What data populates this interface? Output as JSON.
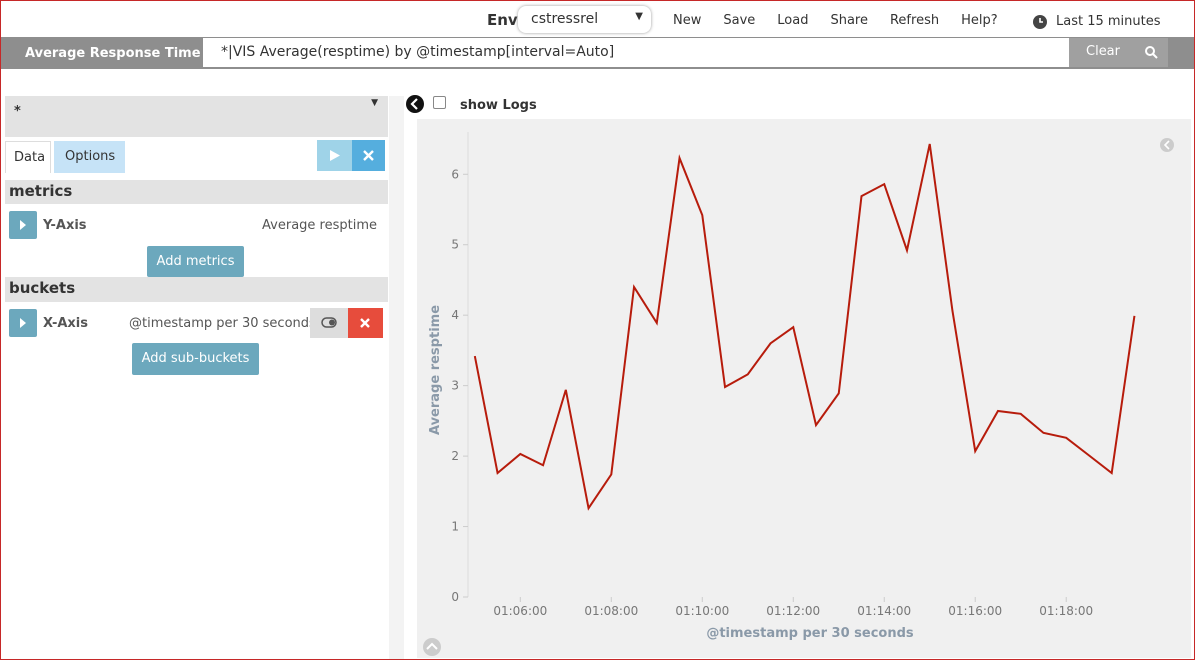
{
  "header": {
    "env_label": "Env",
    "env_value": "cstressrel",
    "menu": [
      "New",
      "Save",
      "Load",
      "Share",
      "Refresh",
      "Help?"
    ],
    "time_range": "Last 15 minutes",
    "title": "Average Response Time",
    "query": "*|VIS Average(resptime) by @timestamp[interval=Auto]",
    "clear": "Clear"
  },
  "sidebar": {
    "index": "*",
    "tabs": [
      "Data",
      "Options"
    ],
    "metrics_title": "metrics",
    "metrics": [
      {
        "name": "Y-Axis",
        "value": "Average resptime"
      }
    ],
    "add_metrics": "Add metrics",
    "buckets_title": "buckets",
    "buckets": [
      {
        "name": "X-Axis",
        "value": "@timestamp per 30 seconds"
      }
    ],
    "add_buckets": "Add sub-buckets"
  },
  "show_logs": "show Logs",
  "chart_data": {
    "type": "line",
    "x_label": "@timestamp per 30 seconds",
    "y_label": "Average resptime",
    "color": "#b71c0c",
    "x": [
      "01:05:00",
      "01:05:30",
      "01:06:00",
      "01:06:30",
      "01:07:00",
      "01:07:30",
      "01:08:00",
      "01:08:30",
      "01:09:00",
      "01:09:30",
      "01:10:00",
      "01:10:30",
      "01:11:00",
      "01:11:30",
      "01:12:00",
      "01:12:30",
      "01:13:00",
      "01:13:30",
      "01:14:00",
      "01:14:30",
      "01:15:00",
      "01:15:30",
      "01:16:00",
      "01:16:30",
      "01:17:00",
      "01:17:30",
      "01:18:00",
      "01:18:30",
      "01:19:00",
      "01:19:30"
    ],
    "values": [
      3.42,
      1.76,
      2.03,
      1.87,
      2.94,
      1.26,
      1.74,
      4.4,
      3.89,
      6.23,
      5.42,
      2.98,
      3.16,
      3.6,
      3.83,
      2.44,
      2.89,
      5.69,
      5.86,
      4.92,
      6.43,
      4.06,
      2.07,
      2.64,
      2.6,
      2.33,
      2.26,
      2.01,
      1.76,
      3.99
    ],
    "xlim": [
      "01:04:51",
      "01:20:38"
    ],
    "xticks": [
      "01:06:00",
      "01:08:00",
      "01:10:00",
      "01:12:00",
      "01:14:00",
      "01:16:00",
      "01:18:00"
    ],
    "ylim": [
      0,
      6.6
    ],
    "yticks": [
      0,
      1,
      2,
      3,
      4,
      5,
      6
    ]
  }
}
